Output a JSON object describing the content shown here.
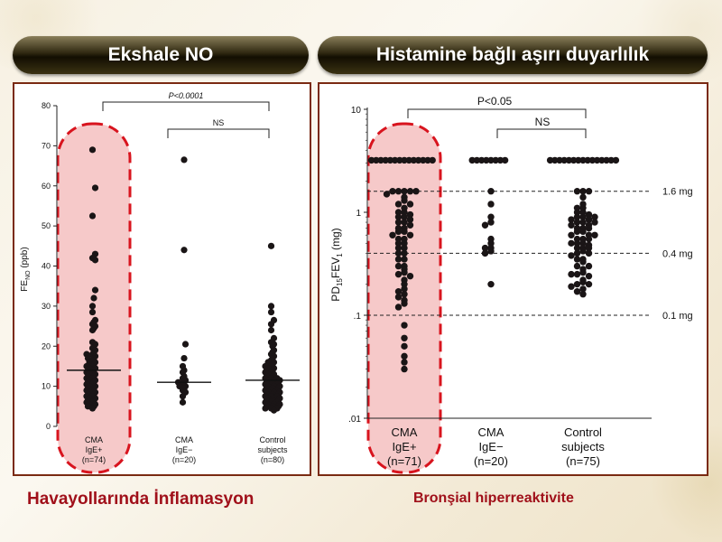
{
  "colors": {
    "dot": "#1a1516",
    "highlight_fill": "#f6c9c9",
    "highlight_stroke": "#d8141e",
    "caption": "#a0101a"
  },
  "left": {
    "banner": "Ekshale NO",
    "caption": "Havayollarında İnflamasyon",
    "sig_main": "P<0.0001",
    "sig_ns": "NS",
    "ylabel_main": "FE",
    "ylabel_sub": "NO",
    "ylabel_unit": " (ppb)",
    "yticks": [
      "0",
      "10",
      "20",
      "30",
      "40",
      "50",
      "60",
      "70",
      "80"
    ],
    "groups": [
      {
        "line1": "CMA",
        "line2": "IgE+",
        "line3": "(n=74)"
      },
      {
        "line1": "CMA",
        "line2": "IgE−",
        "line3": "(n=20)"
      },
      {
        "line1": "Control",
        "line2": "subjects",
        "line3": "(n=80)"
      }
    ]
  },
  "right": {
    "banner": "Histamine bağlı aşırı duyarlılık",
    "caption": "Bronşial hiperreaktivite",
    "sig_main": "P<0.05",
    "sig_ns": "NS",
    "ylabel_a": "PD",
    "ylabel_sub1": "15",
    "ylabel_b": "FEV",
    "ylabel_sub2": "1",
    "ylabel_unit": " (mg)",
    "yticks": [
      "10",
      "1",
      ".1",
      ".01"
    ],
    "refs": [
      "1.6 mg",
      "0.4 mg",
      "0.1 mg"
    ],
    "groups": [
      {
        "line1": "CMA",
        "line2": "IgE+",
        "line3": "(n=71)"
      },
      {
        "line1": "CMA",
        "line2": "IgE−",
        "line3": "(n=20)"
      },
      {
        "line1": "Control",
        "line2": "subjects",
        "line3": "(n=75)"
      }
    ]
  },
  "chart_data": [
    {
      "type": "scatter",
      "ylabel": "FENO (ppb)",
      "ylim": [
        0,
        80
      ],
      "categories": [
        "CMA IgE+ (n=74)",
        "CMA IgE− (n=20)",
        "Control subjects (n=80)"
      ],
      "medians": [
        14,
        11,
        11.5
      ],
      "annotations": [
        "P<0.0001",
        "NS"
      ],
      "series": [
        {
          "values": [
            69,
            59.5,
            52.5,
            43,
            42,
            41.5,
            34,
            32,
            30,
            28.5,
            26.5,
            26,
            25.5,
            25,
            24.5,
            24,
            21,
            20.5,
            20,
            19.5,
            19,
            18.5,
            18,
            18,
            17.5,
            17,
            17,
            16.5,
            16,
            16,
            15.5,
            15,
            15,
            14.5,
            14.5,
            14,
            14,
            13.5,
            13.5,
            13,
            13,
            12.5,
            12.5,
            12,
            12,
            11.5,
            11.5,
            11,
            11,
            10.5,
            10.5,
            10,
            10,
            9.5,
            9.5,
            9,
            9,
            8.5,
            8.5,
            8,
            8,
            7.5,
            7.5,
            7,
            7,
            6.5,
            6.5,
            6,
            6,
            5.5,
            5.5,
            5,
            5,
            4.5
          ]
        },
        {
          "values": [
            66.5,
            44,
            20.5,
            17,
            15,
            14,
            13.5,
            12.5,
            12,
            11.5,
            11,
            11,
            10.5,
            10,
            10,
            9.5,
            9,
            8.5,
            7.5,
            6
          ]
        },
        {
          "values": [
            45,
            30,
            28.5,
            26.5,
            25.5,
            24,
            22,
            21,
            20.5,
            20,
            19,
            18.5,
            18,
            17.5,
            17,
            16.5,
            16,
            16,
            15.5,
            15,
            15,
            14.5,
            14.5,
            14,
            14,
            13.5,
            13.5,
            13,
            13,
            12.5,
            12.5,
            12,
            12,
            12,
            11.5,
            11.5,
            11.5,
            11,
            11,
            11,
            10.5,
            10.5,
            10.5,
            10,
            10,
            10,
            9.5,
            9.5,
            9.5,
            9,
            9,
            9,
            8.5,
            8.5,
            8.5,
            8,
            8,
            8,
            7.5,
            7.5,
            7.5,
            7,
            7,
            7,
            6.5,
            6.5,
            6.5,
            6,
            6,
            6,
            5.5,
            5.5,
            5.5,
            5,
            5,
            5,
            4.5,
            4.5,
            4.5,
            4
          ]
        }
      ]
    },
    {
      "type": "scatter",
      "ylabel": "PD15FEV1 (mg)",
      "yscale": "log",
      "ylim": [
        0.01,
        10
      ],
      "reference_lines": [
        1.6,
        0.4,
        0.1
      ],
      "categories": [
        "CMA IgE+ (n=71)",
        "CMA IgE− (n=20)",
        "Control subjects (n=75)"
      ],
      "annotations": [
        "P<0.05",
        "NS"
      ],
      "series": [
        {
          "values": [
            3.2,
            3.2,
            3.2,
            3.2,
            3.2,
            3.2,
            3.2,
            3.2,
            3.2,
            3.2,
            3.2,
            3.2,
            3.2,
            3.2,
            1.6,
            1.6,
            1.6,
            1.6,
            1.6,
            1.5,
            1.4,
            1.3,
            1.2,
            1.2,
            1.1,
            1.0,
            1.0,
            0.95,
            0.9,
            0.9,
            0.85,
            0.8,
            0.8,
            0.75,
            0.7,
            0.7,
            0.65,
            0.65,
            0.6,
            0.6,
            0.55,
            0.55,
            0.5,
            0.5,
            0.45,
            0.45,
            0.4,
            0.4,
            0.35,
            0.35,
            0.3,
            0.3,
            0.28,
            0.26,
            0.25,
            0.24,
            0.22,
            0.2,
            0.18,
            0.17,
            0.16,
            0.15,
            0.14,
            0.13,
            0.12,
            0.08,
            0.06,
            0.05,
            0.04,
            0.035,
            0.03
          ]
        },
        {
          "values": [
            3.2,
            3.2,
            3.2,
            3.2,
            3.2,
            3.2,
            3.2,
            3.2,
            1.6,
            1.2,
            0.9,
            0.8,
            0.75,
            0.55,
            0.5,
            0.45,
            0.45,
            0.42,
            0.4,
            0.2
          ]
        },
        {
          "values": [
            3.2,
            3.2,
            3.2,
            3.2,
            3.2,
            3.2,
            3.2,
            3.2,
            3.2,
            3.2,
            3.2,
            3.2,
            3.2,
            3.2,
            3.2,
            1.6,
            1.6,
            1.6,
            1.4,
            1.2,
            1.1,
            1.0,
            1.0,
            0.95,
            0.9,
            0.9,
            0.85,
            0.85,
            0.8,
            0.8,
            0.75,
            0.75,
            0.7,
            0.7,
            0.65,
            0.65,
            0.6,
            0.6,
            0.55,
            0.55,
            0.5,
            0.5,
            0.48,
            0.45,
            0.45,
            0.42,
            0.4,
            0.4,
            0.38,
            0.35,
            0.33,
            0.3,
            0.28,
            0.26,
            0.25,
            0.24,
            0.22,
            0.21,
            0.2,
            0.2,
            0.19,
            0.18,
            0.17,
            0.16,
            0.3,
            0.5,
            0.7,
            0.9,
            1.1,
            0.6,
            0.8,
            0.45,
            0.35,
            0.25,
            0.55
          ]
        }
      ]
    }
  ]
}
